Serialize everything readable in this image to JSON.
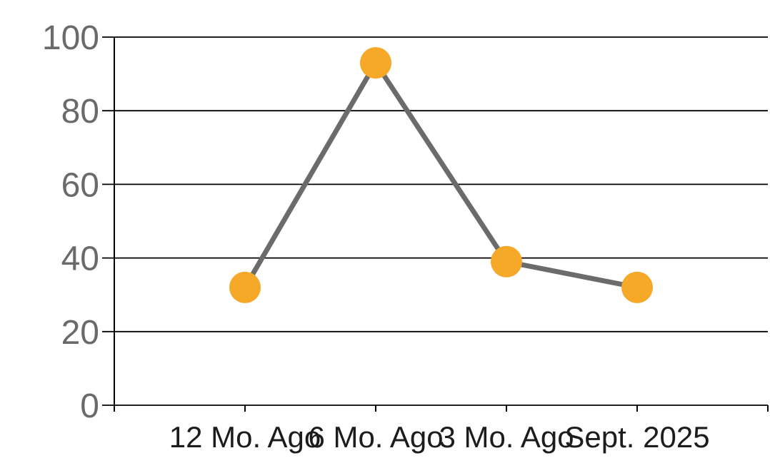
{
  "chart_data": {
    "type": "line",
    "categories": [
      "12 Mo. Ago",
      "6 Mo. Ago",
      "3 Mo. Ago",
      "Sept. 2025"
    ],
    "values": [
      32,
      93,
      39,
      32
    ],
    "ylim": [
      0,
      100
    ],
    "yticks": [
      0,
      20,
      40,
      60,
      80,
      100
    ],
    "xlabel": "",
    "ylabel": "",
    "grid": "horizontal",
    "legend": "none",
    "colors": {
      "marker": "#F6A828",
      "line": "#6B6B6B",
      "grid": "#000000",
      "axis": "#000000",
      "y_tick_label": "#6A6A6A",
      "x_tick_label": "#1C1C1C",
      "background": "#FFFFFF"
    }
  }
}
